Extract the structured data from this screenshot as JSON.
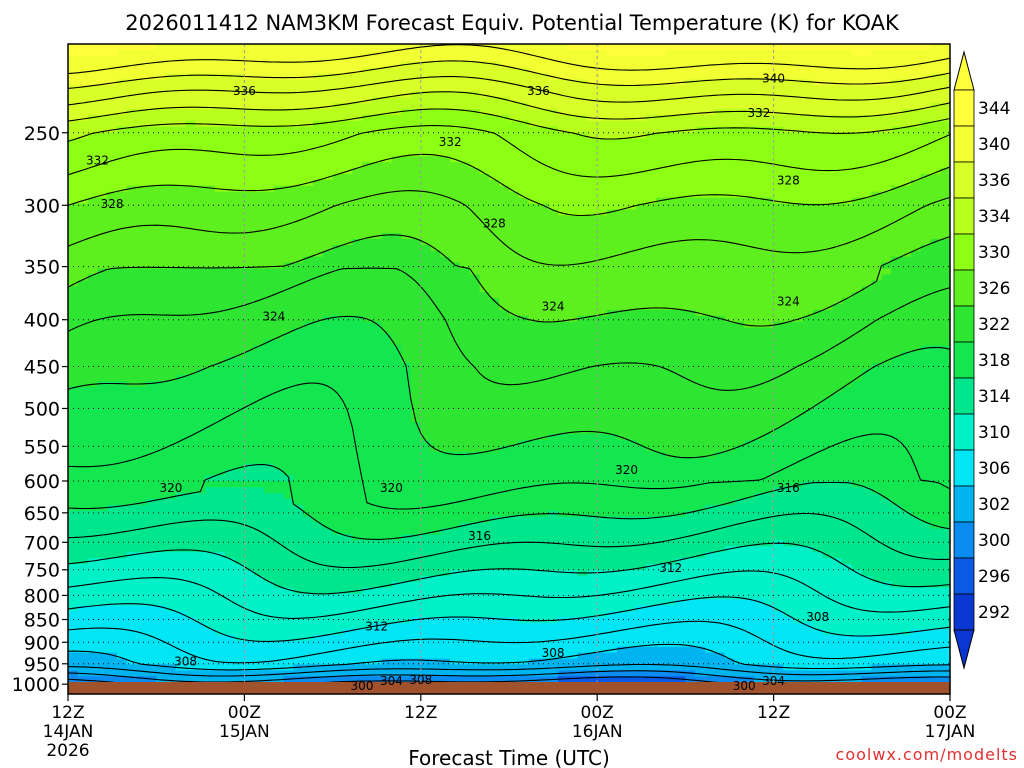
{
  "chart_data": {
    "type": "heatmap",
    "title": "2026011412 NAM3KM Forecast Equiv. Potential Temperature (K) for KOAK",
    "xlabel": "Forecast Time (UTC)",
    "ylabel": "",
    "watermark": "coolwx.com/modelts",
    "x_ticks": [
      {
        "hours": 0,
        "line1": "12Z",
        "line2": "14JAN",
        "line3": "2026"
      },
      {
        "hours": 12,
        "line1": "00Z",
        "line2": "15JAN",
        "line3": ""
      },
      {
        "hours": 24,
        "line1": "12Z",
        "line2": "",
        "line3": ""
      },
      {
        "hours": 36,
        "line1": "00Z",
        "line2": "16JAN",
        "line3": ""
      },
      {
        "hours": 48,
        "line1": "12Z",
        "line2": "",
        "line3": ""
      },
      {
        "hours": 60,
        "line1": "00Z",
        "line2": "17JAN",
        "line3": ""
      }
    ],
    "xlim_hours": [
      0,
      60
    ],
    "y_ticks": [
      "250",
      "300",
      "350",
      "400",
      "450",
      "500",
      "550",
      "600",
      "650",
      "700",
      "750",
      "800",
      "850",
      "900",
      "950",
      "1000"
    ],
    "y_tick_values": [
      250,
      300,
      350,
      400,
      450,
      500,
      550,
      600,
      650,
      700,
      750,
      800,
      850,
      900,
      950,
      1000
    ],
    "ylim_hpa": [
      200,
      1025
    ],
    "colorbar": {
      "labels": [
        "344",
        "340",
        "336",
        "334",
        "330",
        "326",
        "322",
        "318",
        "314",
        "310",
        "306",
        "302",
        "300",
        "296",
        "292"
      ],
      "colors": [
        "#ffff3c",
        "#f2ff33",
        "#d9ff28",
        "#b8ff1e",
        "#8cff14",
        "#5ef01e",
        "#2ee632",
        "#14e650",
        "#00e68c",
        "#00f0c8",
        "#00e6f5",
        "#00b4f0",
        "#0a8cf0",
        "#0a5ae6",
        "#0a37d2"
      ]
    },
    "contour_labels": [
      {
        "text": "336",
        "x_h": 12,
        "p": 225
      },
      {
        "text": "336",
        "x_h": 32,
        "p": 225
      },
      {
        "text": "340",
        "x_h": 48,
        "p": 218
      },
      {
        "text": "332",
        "x_h": 2,
        "p": 268
      },
      {
        "text": "332",
        "x_h": 26,
        "p": 256
      },
      {
        "text": "332",
        "x_h": 47,
        "p": 238
      },
      {
        "text": "328",
        "x_h": 3,
        "p": 299
      },
      {
        "text": "328",
        "x_h": 29,
        "p": 314
      },
      {
        "text": "328",
        "x_h": 49,
        "p": 282
      },
      {
        "text": "324",
        "x_h": 14,
        "p": 397
      },
      {
        "text": "324",
        "x_h": 33,
        "p": 387
      },
      {
        "text": "324",
        "x_h": 49,
        "p": 382
      },
      {
        "text": "320",
        "x_h": 7,
        "p": 611
      },
      {
        "text": "320",
        "x_h": 22,
        "p": 611
      },
      {
        "text": "320",
        "x_h": 38,
        "p": 584
      },
      {
        "text": "316",
        "x_h": 28,
        "p": 689
      },
      {
        "text": "316",
        "x_h": 49,
        "p": 611
      },
      {
        "text": "312",
        "x_h": 21,
        "p": 865
      },
      {
        "text": "312",
        "x_h": 41,
        "p": 747
      },
      {
        "text": "308",
        "x_h": 8,
        "p": 945
      },
      {
        "text": "308",
        "x_h": 33,
        "p": 925
      },
      {
        "text": "308",
        "x_h": 51,
        "p": 845
      },
      {
        "text": "304",
        "x_h": 22,
        "p": 992
      },
      {
        "text": "304",
        "x_h": 48,
        "p": 992
      },
      {
        "text": "300",
        "x_h": 20,
        "p": 1005
      },
      {
        "text": "300",
        "x_h": 46,
        "p": 1005
      },
      {
        "text": "308",
        "x_h": 24,
        "p": 990
      }
    ],
    "theta_e_profile_K": [
      {
        "p": 200,
        "k": 344
      },
      {
        "p": 225,
        "k": 338
      },
      {
        "p": 250,
        "k": 333
      },
      {
        "p": 300,
        "k": 329
      },
      {
        "p": 350,
        "k": 326.5
      },
      {
        "p": 400,
        "k": 324.5
      },
      {
        "p": 450,
        "k": 323
      },
      {
        "p": 500,
        "k": 322
      },
      {
        "p": 550,
        "k": 321
      },
      {
        "p": 600,
        "k": 320
      },
      {
        "p": 650,
        "k": 318
      },
      {
        "p": 700,
        "k": 316
      },
      {
        "p": 750,
        "k": 314
      },
      {
        "p": 800,
        "k": 312
      },
      {
        "p": 850,
        "k": 310
      },
      {
        "p": 900,
        "k": 308
      },
      {
        "p": 950,
        "k": 306
      },
      {
        "p": 980,
        "k": 302
      },
      {
        "p": 1010,
        "k": 298
      }
    ],
    "grid": true
  }
}
